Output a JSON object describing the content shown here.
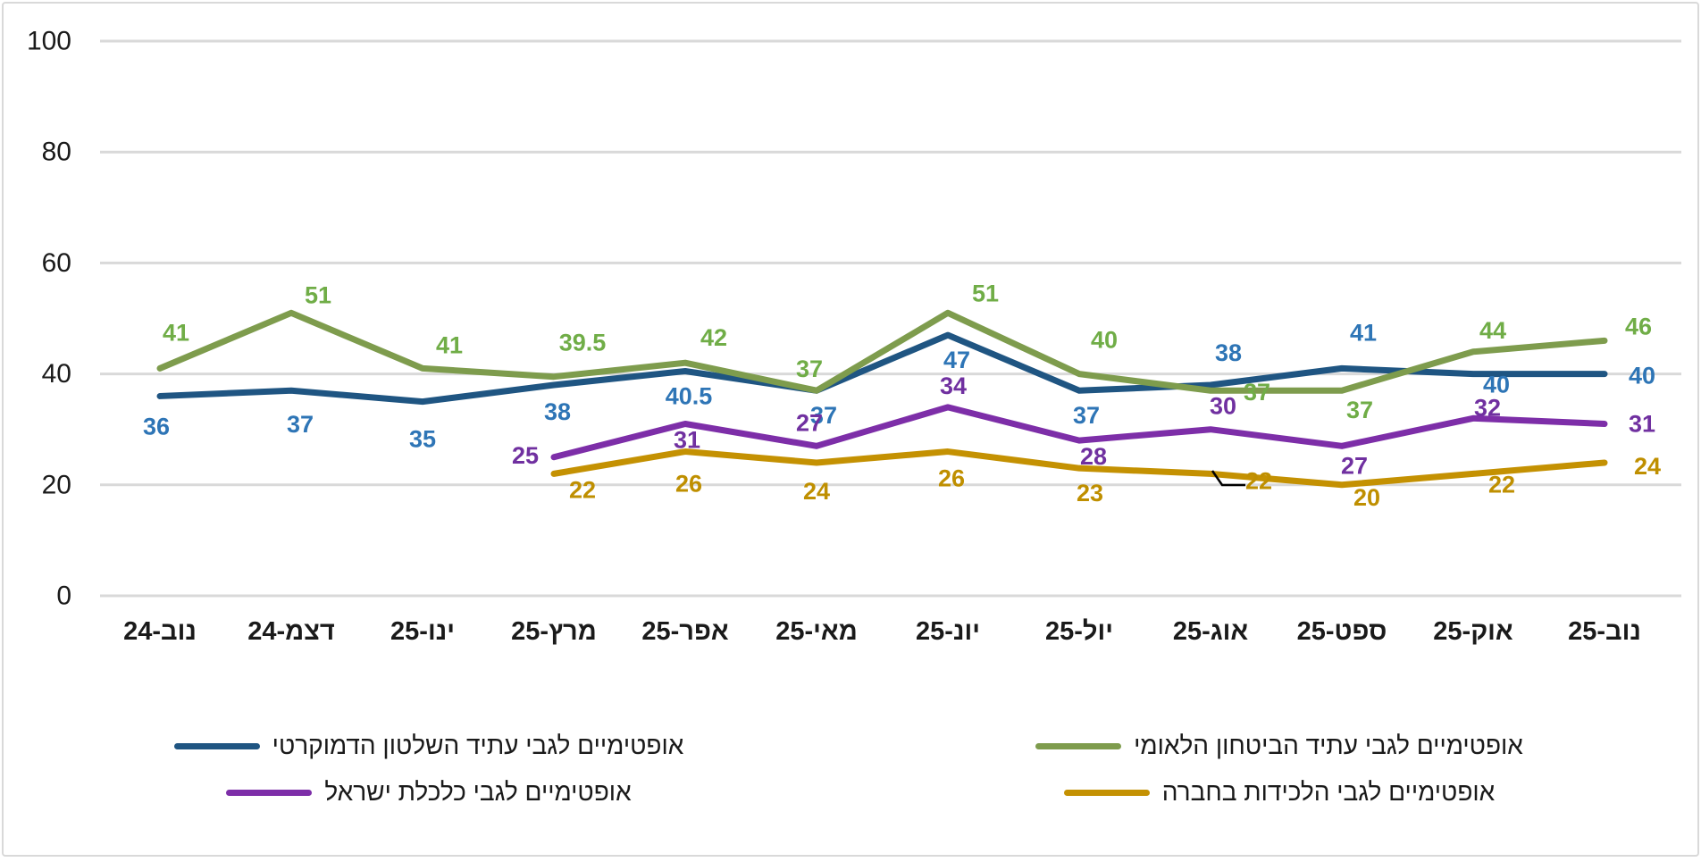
{
  "chart_data": {
    "type": "line",
    "title": "",
    "xlabel": "",
    "ylabel": "",
    "ylim": [
      0,
      100
    ],
    "y_ticks": [
      0,
      20,
      40,
      60,
      80,
      100
    ],
    "grid": true,
    "legend_position": "bottom",
    "categories": [
      "נוב-24",
      "דצמ-24",
      "ינו-25",
      "מרץ-25",
      "אפר-25",
      "מאי-25",
      "יונ-25",
      "יול-25",
      "אוג-25",
      "ספט-25",
      "אוק-25",
      "נוב-25"
    ],
    "series": [
      {
        "name": "אופטימיים לגבי עתיד השלטון הדמוקרטי",
        "color": "#1F5582",
        "label_color": "#2E75B6",
        "values": [
          36,
          37,
          35,
          38,
          40.5,
          37,
          47,
          37,
          38,
          41,
          40,
          40
        ],
        "label_offsets": [
          [
            -4,
            34
          ],
          [
            10,
            38
          ],
          [
            0,
            42
          ],
          [
            4,
            30
          ],
          [
            4,
            28
          ],
          [
            8,
            28
          ],
          [
            10,
            28
          ],
          [
            8,
            28
          ],
          [
            20,
            -36
          ],
          [
            24,
            -40
          ],
          [
            26,
            12
          ],
          [
            42,
            2
          ]
        ]
      },
      {
        "name": "אופטימיים לגבי עתיד הביטחון הלאומי",
        "color": "#7E9C4D",
        "label_color": "#70AD47",
        "values": [
          41,
          51,
          41,
          39.5,
          42,
          37,
          51,
          40,
          37,
          37,
          44,
          46
        ],
        "label_offsets": [
          [
            18,
            -40
          ],
          [
            30,
            -20
          ],
          [
            30,
            -26
          ],
          [
            32,
            -38
          ],
          [
            32,
            -28
          ],
          [
            -8,
            -24
          ],
          [
            42,
            -22
          ],
          [
            28,
            -38
          ],
          [
            52,
            2
          ],
          [
            20,
            22
          ],
          [
            22,
            -24
          ],
          [
            38,
            -16
          ]
        ]
      },
      {
        "name": "אופטימיים לגבי כלכלת ישראל",
        "color": "#7D2EA8",
        "label_color": "#7030A0",
        "values": [
          null,
          null,
          null,
          25,
          31,
          27,
          34,
          28,
          30,
          27,
          32,
          31
        ],
        "label_offsets": [
          null,
          null,
          null,
          [
            -32,
            -2
          ],
          [
            2,
            18
          ],
          [
            -8,
            -26
          ],
          [
            6,
            -24
          ],
          [
            16,
            18
          ],
          [
            14,
            -26
          ],
          [
            14,
            22
          ],
          [
            16,
            -12
          ],
          [
            42,
            0
          ]
        ]
      },
      {
        "name": "אופטימיים לגבי הלכידות בחברה",
        "color": "#C49102",
        "label_color": "#BF8F00",
        "values": [
          null,
          null,
          null,
          22,
          26,
          24,
          26,
          23,
          22,
          20,
          22,
          24
        ],
        "label_offsets": [
          null,
          null,
          null,
          [
            32,
            18
          ],
          [
            4,
            36
          ],
          [
            0,
            32
          ],
          [
            4,
            30
          ],
          [
            12,
            28
          ],
          [
            54,
            8
          ],
          [
            28,
            14
          ],
          [
            32,
            12
          ],
          [
            48,
            4
          ]
        ]
      }
    ],
    "annotation": {
      "type": "leader-line",
      "color": "#000000",
      "points": [
        [
          1353,
          523
        ],
        [
          1364,
          539
        ],
        [
          1390,
          539
        ]
      ]
    }
  }
}
